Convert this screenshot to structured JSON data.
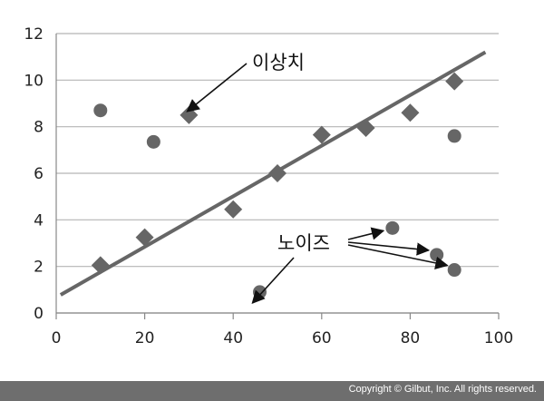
{
  "chart_data": {
    "type": "scatter",
    "xlim": [
      0,
      100
    ],
    "ylim": [
      0,
      12
    ],
    "x_ticks": [
      0,
      20,
      40,
      60,
      80,
      100
    ],
    "y_ticks": [
      0,
      2,
      4,
      6,
      8,
      10,
      12
    ],
    "grid": "horizontal",
    "series": [
      {
        "marker": "diamond",
        "points": [
          [
            10,
            2.05
          ],
          [
            20,
            3.25
          ],
          [
            30,
            8.5
          ],
          [
            40,
            4.45
          ],
          [
            50,
            6.0
          ],
          [
            60,
            7.65
          ],
          [
            70,
            7.95
          ],
          [
            80,
            8.6
          ],
          [
            90,
            9.95
          ]
        ]
      },
      {
        "marker": "circle",
        "points": [
          [
            10,
            8.7
          ],
          [
            22,
            7.35
          ],
          [
            46,
            0.9
          ],
          [
            76,
            3.65
          ],
          [
            86,
            2.5
          ],
          [
            90,
            1.85
          ],
          [
            90,
            7.6
          ]
        ]
      }
    ],
    "trend_line": {
      "x": [
        1,
        97
      ],
      "y": [
        0.78,
        11.2
      ]
    },
    "marker_color": "#666666",
    "line_color": "#666666",
    "annotations": [
      {
        "text": "이상치",
        "targets": [
          [
            30,
            8.5
          ]
        ]
      },
      {
        "text": "노이즈",
        "targets": [
          [
            46,
            0.9
          ],
          [
            76,
            3.65
          ],
          [
            86,
            2.5
          ],
          [
            90,
            1.85
          ]
        ]
      }
    ]
  },
  "footer": {
    "copyright": "Copyright © Gilbut, Inc. All rights reserved."
  }
}
